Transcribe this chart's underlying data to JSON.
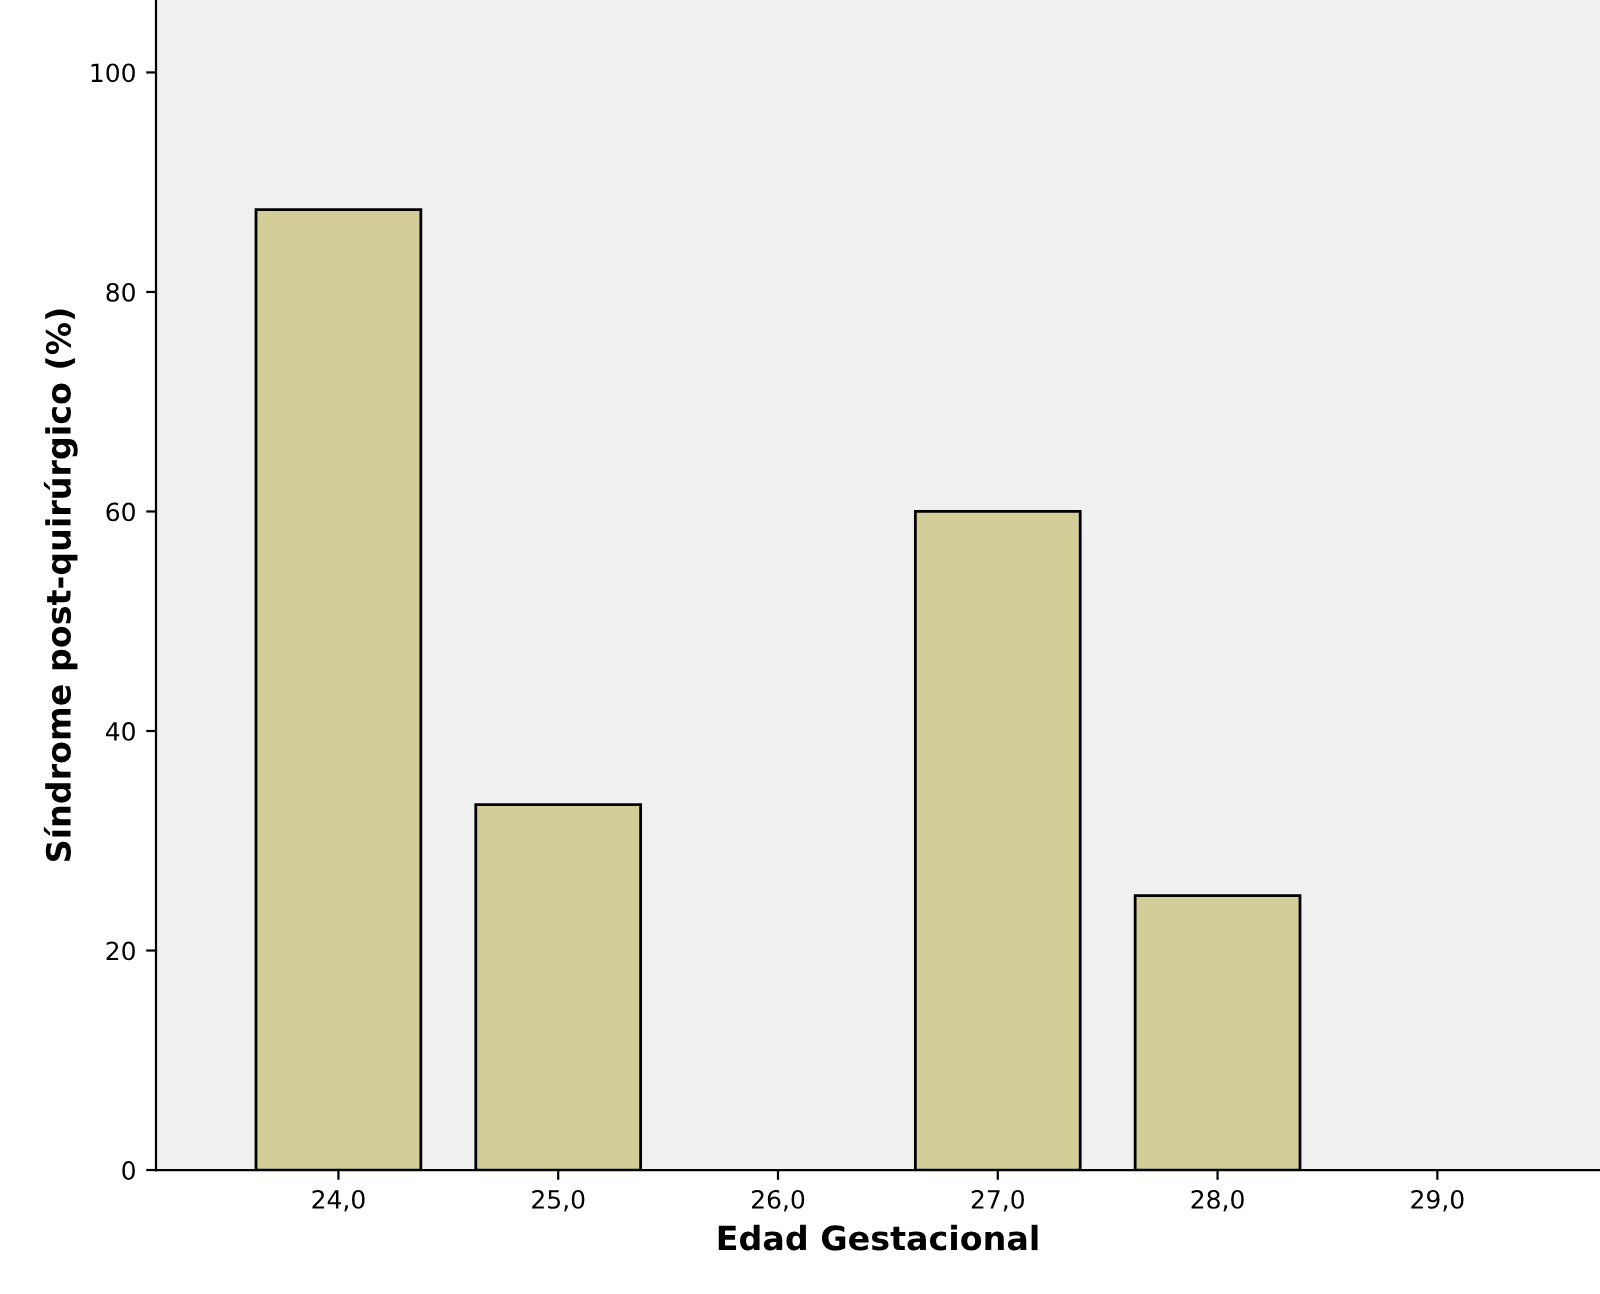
{
  "chart_data": {
    "type": "bar",
    "xlabel": "Edad Gestacional",
    "ylabel": "Síndrome post-quirúrgico (%)",
    "categories": [
      "24,0",
      "25,0",
      "26,0",
      "27,0",
      "28,0",
      "29,0"
    ],
    "values": [
      87.5,
      33.3,
      0,
      60,
      25,
      0
    ],
    "color": "#d3ce97",
    "ylim": [
      0,
      106.6
    ],
    "yticks": [
      0,
      20,
      40,
      60,
      80,
      100
    ],
    "grid": false,
    "legend": false
  }
}
